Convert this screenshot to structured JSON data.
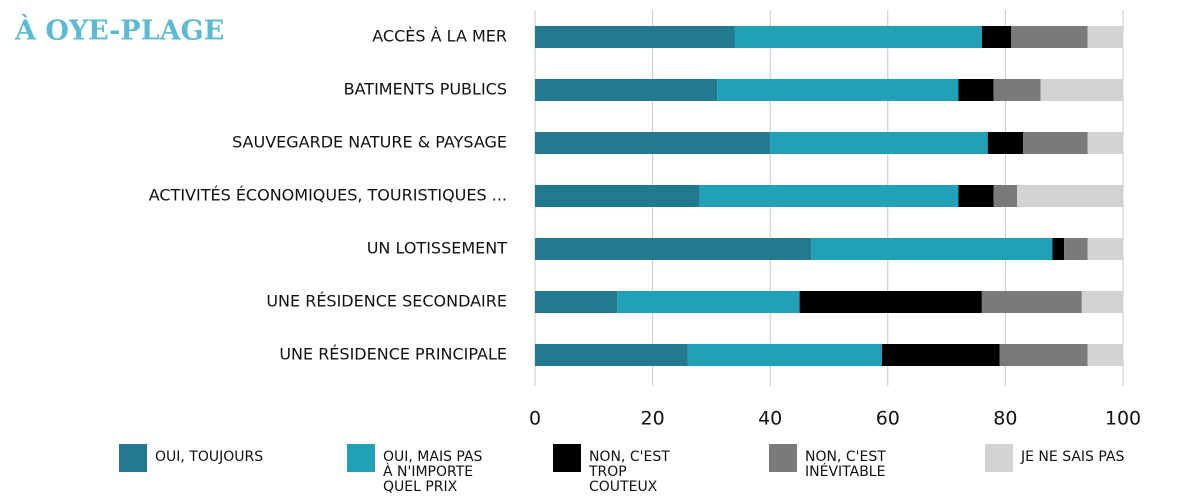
{
  "chart_data": {
    "type": "stacked-barh",
    "title": "À OYE-PLAGE",
    "categories": [
      "ACCÈS À LA MER",
      "BATIMENTS PUBLICS",
      "SAUVEGARDE NATURE & PAYSAGE",
      "ACTIVITÉS ÉCONOMIQUES, TOURISTIQUES ...",
      "UN LOTISSEMENT",
      "UNE RÉSIDENCE SECONDAIRE",
      "UNE RÉSIDENCE PRINCIPALE"
    ],
    "series": [
      {
        "name": "OUI, TOUJOURS",
        "color": "#237a8e",
        "values": [
          34,
          31,
          40,
          28,
          47,
          14,
          26
        ]
      },
      {
        "name": "OUI, MAIS PAS À N'IMPORTE QUEL PRIX",
        "color": "#21a1b7",
        "values": [
          42,
          41,
          37,
          44,
          41,
          31,
          33
        ]
      },
      {
        "name": "NON, C'EST TROP COUTEUX",
        "color": "#000000",
        "values": [
          5,
          6,
          6,
          6,
          2,
          31,
          20
        ]
      },
      {
        "name": "NON, C'EST INÉVITABLE",
        "color": "#7a7a7a",
        "values": [
          13,
          8,
          11,
          4,
          4,
          17,
          15
        ]
      },
      {
        "name": "JE NE SAIS PAS",
        "color": "#d3d3d3",
        "values": [
          6,
          14,
          6,
          18,
          6,
          7,
          6
        ]
      }
    ],
    "xlim": [
      0,
      100
    ],
    "xticks": [
      0,
      20,
      40,
      60,
      80,
      100
    ],
    "grid": true
  }
}
